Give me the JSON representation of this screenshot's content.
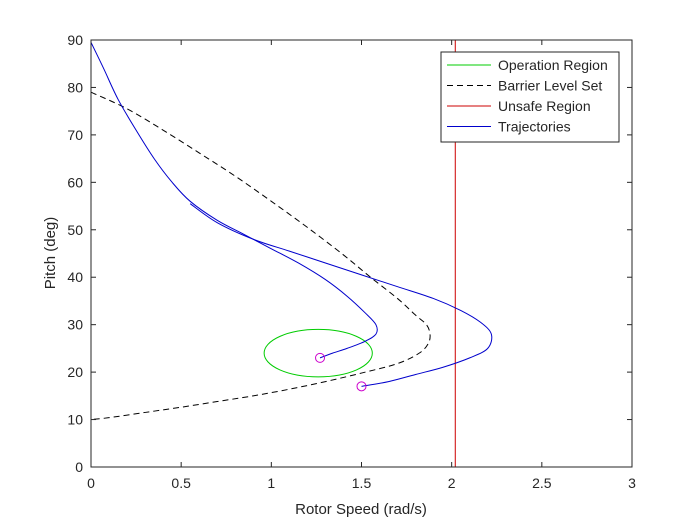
{
  "chart_data": {
    "type": "line",
    "xlabel": "Rotor Speed (rad/s)",
    "ylabel": "Pitch (deg)",
    "xlim": [
      0,
      3
    ],
    "ylim": [
      0,
      90
    ],
    "xticks": [
      0,
      0.5,
      1,
      1.5,
      2,
      2.5,
      3
    ],
    "xtick_labels": [
      "0",
      "0.5",
      "1",
      "1.5",
      "2",
      "2.5",
      "3"
    ],
    "yticks": [
      0,
      10,
      20,
      30,
      40,
      50,
      60,
      70,
      80,
      90
    ],
    "ytick_labels": [
      "0",
      "10",
      "20",
      "30",
      "40",
      "50",
      "60",
      "70",
      "80",
      "90"
    ],
    "grid": false,
    "legend_position": "top-right",
    "series": [
      {
        "name": "Operation Region",
        "kind": "ellipse",
        "color": "#00cc00",
        "center": [
          1.26,
          24
        ],
        "radii": [
          0.3,
          5
        ]
      },
      {
        "name": "Barrier Level Set",
        "kind": "line",
        "style": "dashed",
        "color": "#000000",
        "x": [
          0.0,
          0.2,
          0.4,
          0.6,
          0.8,
          1.0,
          1.2,
          1.4,
          1.55,
          1.7,
          1.8,
          1.86,
          1.88,
          1.87,
          1.82,
          1.7,
          1.5,
          1.3,
          1.1,
          0.9,
          0.7,
          0.5,
          0.3,
          0.1,
          0.0
        ],
        "y": [
          79,
          75.5,
          71,
          66.2,
          61.3,
          56,
          50.5,
          44.7,
          40,
          35.5,
          32,
          30,
          28,
          26,
          24,
          21.8,
          19.8,
          18,
          16.4,
          15,
          13.8,
          12.6,
          11.5,
          10.4,
          10
        ]
      },
      {
        "name": "Unsafe Region",
        "kind": "vline",
        "color": "#cc0000",
        "x": [
          2.02,
          2.02
        ],
        "y": [
          0,
          90
        ]
      },
      {
        "name": "Trajectories",
        "kind": "line",
        "color": "#0000cc",
        "x": [
          0.0,
          0.07,
          0.15,
          0.25,
          0.35,
          0.45,
          0.55,
          0.7,
          0.85,
          1.0,
          1.15,
          1.3,
          1.42,
          1.52,
          1.58,
          1.58,
          1.52,
          1.42,
          1.34,
          1.27
        ],
        "y": [
          89.5,
          84,
          77.5,
          71,
          65,
          60,
          56,
          52,
          49,
          46,
          43,
          39.5,
          36,
          32.5,
          30,
          28,
          26.5,
          25,
          24,
          23
        ],
        "start_marker": false,
        "end_marker": true
      },
      {
        "name": "",
        "kind": "line",
        "color": "#0000cc",
        "x": [
          0.55,
          0.7,
          0.9,
          1.1,
          1.3,
          1.5,
          1.7,
          1.9,
          2.05,
          2.16,
          2.22,
          2.2,
          2.1,
          1.95,
          1.8,
          1.65,
          1.5
        ],
        "y": [
          55.5,
          51.5,
          48,
          45.5,
          43,
          40.5,
          38,
          35.5,
          33,
          30.5,
          28,
          25,
          23,
          21,
          19.5,
          18,
          17
        ],
        "start_marker": false,
        "end_marker": true
      }
    ],
    "legend": {
      "entries": [
        {
          "label": "Operation Region",
          "color": "#00cc00",
          "style": "solid"
        },
        {
          "label": "Barrier Level Set",
          "color": "#000000",
          "style": "dashed"
        },
        {
          "label": "Unsafe Region",
          "color": "#cc0000",
          "style": "solid"
        },
        {
          "label": "Trajectories",
          "color": "#0000cc",
          "style": "solid"
        }
      ]
    },
    "marker_color": "#cc00cc"
  }
}
